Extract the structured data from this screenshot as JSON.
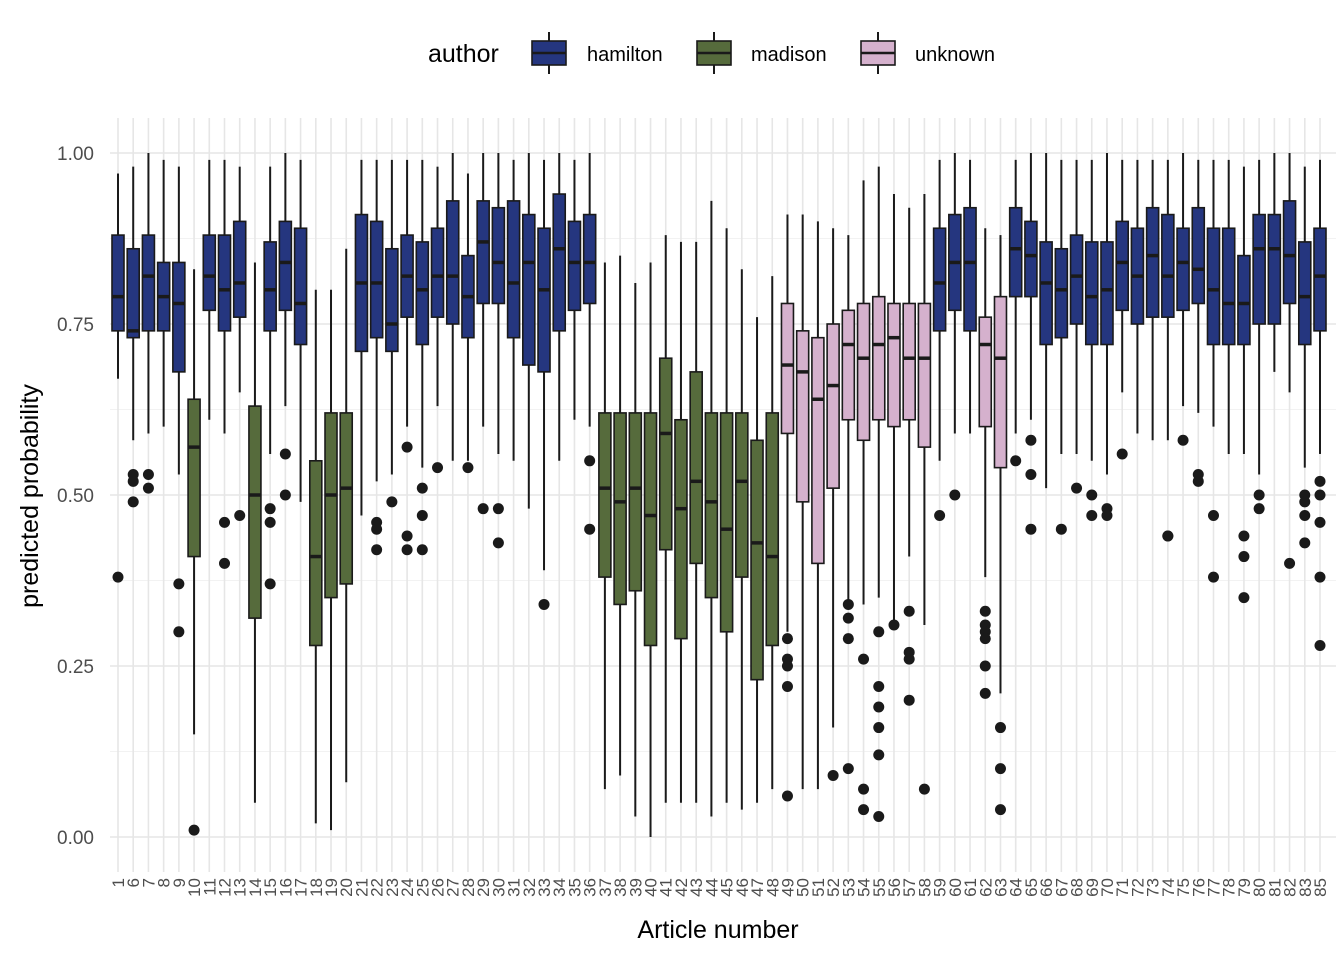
{
  "chart_data": {
    "type": "boxplot",
    "xlabel": "Article number",
    "ylabel": "predicted probability",
    "ylim": [
      -0.05,
      1.05
    ],
    "yticks": [
      "0.00",
      "0.25",
      "0.50",
      "0.75",
      "1.00"
    ],
    "grid": true,
    "legend": {
      "title": "author",
      "placement": "top",
      "entries": [
        {
          "name": "hamilton",
          "color": "#25367f"
        },
        {
          "name": "madison",
          "color": "#566b3c"
        },
        {
          "name": "unknown",
          "color": "#d5b1cd"
        }
      ]
    },
    "articles": [
      {
        "label": "1",
        "author": "hamilton",
        "stats": [
          0.67,
          0.74,
          0.79,
          0.88,
          0.97
        ],
        "outliers": [
          0.38
        ]
      },
      {
        "label": "6",
        "author": "hamilton",
        "stats": [
          0.58,
          0.73,
          0.74,
          0.86,
          0.98
        ],
        "outliers": [
          0.53,
          0.52,
          0.49
        ]
      },
      {
        "label": "7",
        "author": "hamilton",
        "stats": [
          0.59,
          0.74,
          0.82,
          0.88,
          1.0
        ],
        "outliers": [
          0.53,
          0.51
        ]
      },
      {
        "label": "8",
        "author": "hamilton",
        "stats": [
          0.6,
          0.74,
          0.79,
          0.84,
          0.99
        ],
        "outliers": []
      },
      {
        "label": "9",
        "author": "hamilton",
        "stats": [
          0.53,
          0.68,
          0.78,
          0.84,
          0.98
        ],
        "outliers": [
          0.37,
          0.3
        ]
      },
      {
        "label": "10",
        "author": "madison",
        "stats": [
          0.15,
          0.41,
          0.57,
          0.64,
          0.83
        ],
        "outliers": [
          0.01
        ]
      },
      {
        "label": "11",
        "author": "hamilton",
        "stats": [
          0.61,
          0.77,
          0.82,
          0.88,
          0.99
        ],
        "outliers": []
      },
      {
        "label": "12",
        "author": "hamilton",
        "stats": [
          0.59,
          0.74,
          0.8,
          0.88,
          0.99
        ],
        "outliers": [
          0.46,
          0.4
        ]
      },
      {
        "label": "13",
        "author": "hamilton",
        "stats": [
          0.65,
          0.76,
          0.81,
          0.9,
          0.98
        ],
        "outliers": [
          0.47
        ]
      },
      {
        "label": "14",
        "author": "madison",
        "stats": [
          0.05,
          0.32,
          0.5,
          0.63,
          0.84
        ],
        "outliers": []
      },
      {
        "label": "15",
        "author": "hamilton",
        "stats": [
          0.56,
          0.74,
          0.8,
          0.87,
          0.98
        ],
        "outliers": [
          0.48,
          0.46,
          0.37
        ]
      },
      {
        "label": "16",
        "author": "hamilton",
        "stats": [
          0.63,
          0.77,
          0.84,
          0.9,
          1.0
        ],
        "outliers": [
          0.56,
          0.5
        ]
      },
      {
        "label": "17",
        "author": "hamilton",
        "stats": [
          0.49,
          0.72,
          0.78,
          0.89,
          0.99
        ],
        "outliers": []
      },
      {
        "label": "18",
        "author": "madison",
        "stats": [
          0.02,
          0.28,
          0.41,
          0.55,
          0.8
        ],
        "outliers": []
      },
      {
        "label": "19",
        "author": "madison",
        "stats": [
          0.01,
          0.35,
          0.5,
          0.62,
          0.8
        ],
        "outliers": []
      },
      {
        "label": "20",
        "author": "madison",
        "stats": [
          0.08,
          0.37,
          0.51,
          0.62,
          0.86
        ],
        "outliers": []
      },
      {
        "label": "21",
        "author": "hamilton",
        "stats": [
          0.47,
          0.71,
          0.81,
          0.91,
          0.99
        ],
        "outliers": []
      },
      {
        "label": "22",
        "author": "hamilton",
        "stats": [
          0.52,
          0.73,
          0.81,
          0.9,
          0.99
        ],
        "outliers": [
          0.46,
          0.45,
          0.42
        ]
      },
      {
        "label": "23",
        "author": "hamilton",
        "stats": [
          0.53,
          0.71,
          0.75,
          0.86,
          0.99
        ],
        "outliers": [
          0.49
        ]
      },
      {
        "label": "24",
        "author": "hamilton",
        "stats": [
          0.6,
          0.76,
          0.82,
          0.88,
          0.99
        ],
        "outliers": [
          0.57,
          0.44,
          0.42
        ]
      },
      {
        "label": "25",
        "author": "hamilton",
        "stats": [
          0.54,
          0.72,
          0.8,
          0.87,
          0.99
        ],
        "outliers": [
          0.51,
          0.47,
          0.42
        ]
      },
      {
        "label": "26",
        "author": "hamilton",
        "stats": [
          0.63,
          0.76,
          0.82,
          0.89,
          0.98
        ],
        "outliers": [
          0.54
        ]
      },
      {
        "label": "27",
        "author": "hamilton",
        "stats": [
          0.55,
          0.75,
          0.82,
          0.93,
          1.0
        ],
        "outliers": []
      },
      {
        "label": "28",
        "author": "hamilton",
        "stats": [
          0.55,
          0.73,
          0.79,
          0.85,
          0.97
        ],
        "outliers": [
          0.54
        ]
      },
      {
        "label": "29",
        "author": "hamilton",
        "stats": [
          0.6,
          0.78,
          0.87,
          0.93,
          1.0
        ],
        "outliers": [
          0.48
        ]
      },
      {
        "label": "30",
        "author": "hamilton",
        "stats": [
          0.56,
          0.78,
          0.84,
          0.92,
          1.0
        ],
        "outliers": [
          0.48,
          0.43
        ]
      },
      {
        "label": "31",
        "author": "hamilton",
        "stats": [
          0.55,
          0.73,
          0.81,
          0.93,
          0.99
        ],
        "outliers": []
      },
      {
        "label": "32",
        "author": "hamilton",
        "stats": [
          0.48,
          0.69,
          0.84,
          0.91,
          1.0
        ],
        "outliers": []
      },
      {
        "label": "33",
        "author": "hamilton",
        "stats": [
          0.39,
          0.68,
          0.8,
          0.89,
          0.99
        ],
        "outliers": [
          0.34
        ]
      },
      {
        "label": "34",
        "author": "hamilton",
        "stats": [
          0.55,
          0.74,
          0.86,
          0.94,
          1.0
        ],
        "outliers": []
      },
      {
        "label": "35",
        "author": "hamilton",
        "stats": [
          0.61,
          0.77,
          0.84,
          0.9,
          0.99
        ],
        "outliers": []
      },
      {
        "label": "36",
        "author": "hamilton",
        "stats": [
          0.6,
          0.78,
          0.84,
          0.91,
          1.0
        ],
        "outliers": [
          0.55,
          0.45
        ]
      },
      {
        "label": "37",
        "author": "madison",
        "stats": [
          0.07,
          0.38,
          0.51,
          0.62,
          0.84
        ],
        "outliers": []
      },
      {
        "label": "38",
        "author": "madison",
        "stats": [
          0.09,
          0.34,
          0.49,
          0.62,
          0.85
        ],
        "outliers": []
      },
      {
        "label": "39",
        "author": "madison",
        "stats": [
          0.03,
          0.36,
          0.51,
          0.62,
          0.81
        ],
        "outliers": []
      },
      {
        "label": "40",
        "author": "madison",
        "stats": [
          0.0,
          0.28,
          0.47,
          0.62,
          0.84
        ],
        "outliers": []
      },
      {
        "label": "41",
        "author": "madison",
        "stats": [
          0.05,
          0.42,
          0.59,
          0.7,
          0.88
        ],
        "outliers": []
      },
      {
        "label": "42",
        "author": "madison",
        "stats": [
          0.05,
          0.29,
          0.48,
          0.61,
          0.87
        ],
        "outliers": []
      },
      {
        "label": "43",
        "author": "madison",
        "stats": [
          0.05,
          0.4,
          0.52,
          0.68,
          0.87
        ],
        "outliers": []
      },
      {
        "label": "44",
        "author": "madison",
        "stats": [
          0.03,
          0.35,
          0.49,
          0.62,
          0.93
        ],
        "outliers": []
      },
      {
        "label": "45",
        "author": "madison",
        "stats": [
          0.05,
          0.3,
          0.45,
          0.62,
          0.89
        ],
        "outliers": []
      },
      {
        "label": "46",
        "author": "madison",
        "stats": [
          0.04,
          0.38,
          0.52,
          0.62,
          0.83
        ],
        "outliers": []
      },
      {
        "label": "47",
        "author": "madison",
        "stats": [
          0.05,
          0.23,
          0.43,
          0.58,
          0.76
        ],
        "outliers": []
      },
      {
        "label": "48",
        "author": "madison",
        "stats": [
          0.07,
          0.28,
          0.41,
          0.62,
          0.82
        ],
        "outliers": []
      },
      {
        "label": "49",
        "author": "unknown",
        "stats": [
          0.3,
          0.59,
          0.69,
          0.78,
          0.91
        ],
        "outliers": [
          0.29,
          0.26,
          0.25,
          0.22,
          0.06
        ]
      },
      {
        "label": "50",
        "author": "unknown",
        "stats": [
          0.07,
          0.49,
          0.68,
          0.74,
          0.91
        ],
        "outliers": []
      },
      {
        "label": "51",
        "author": "unknown",
        "stats": [
          0.07,
          0.4,
          0.64,
          0.73,
          0.9
        ],
        "outliers": []
      },
      {
        "label": "52",
        "author": "unknown",
        "stats": [
          0.16,
          0.51,
          0.66,
          0.75,
          0.89
        ],
        "outliers": [
          0.09
        ]
      },
      {
        "label": "53",
        "author": "unknown",
        "stats": [
          0.34,
          0.61,
          0.72,
          0.77,
          0.88
        ],
        "outliers": [
          0.34,
          0.32,
          0.29,
          0.1
        ]
      },
      {
        "label": "54",
        "author": "unknown",
        "stats": [
          0.34,
          0.58,
          0.7,
          0.78,
          0.96
        ],
        "outliers": [
          0.26,
          0.07,
          0.04
        ]
      },
      {
        "label": "55",
        "author": "unknown",
        "stats": [
          0.35,
          0.61,
          0.72,
          0.79,
          0.98
        ],
        "outliers": [
          0.3,
          0.22,
          0.19,
          0.16,
          0.12,
          0.03
        ]
      },
      {
        "label": "56",
        "author": "unknown",
        "stats": [
          0.31,
          0.6,
          0.73,
          0.78,
          0.94
        ],
        "outliers": [
          0.31
        ]
      },
      {
        "label": "57",
        "author": "unknown",
        "stats": [
          0.41,
          0.61,
          0.7,
          0.78,
          0.92
        ],
        "outliers": [
          0.33,
          0.27,
          0.26,
          0.2
        ]
      },
      {
        "label": "58",
        "author": "unknown",
        "stats": [
          0.31,
          0.57,
          0.7,
          0.78,
          0.94
        ],
        "outliers": [
          0.07
        ]
      },
      {
        "label": "59",
        "author": "hamilton",
        "stats": [
          0.55,
          0.74,
          0.81,
          0.89,
          0.99
        ],
        "outliers": [
          0.47
        ]
      },
      {
        "label": "60",
        "author": "hamilton",
        "stats": [
          0.59,
          0.77,
          0.84,
          0.91,
          1.0
        ],
        "outliers": [
          0.5
        ]
      },
      {
        "label": "61",
        "author": "hamilton",
        "stats": [
          0.59,
          0.74,
          0.84,
          0.92,
          0.99
        ],
        "outliers": []
      },
      {
        "label": "62",
        "author": "unknown",
        "stats": [
          0.38,
          0.6,
          0.72,
          0.76,
          0.89
        ],
        "outliers": [
          0.33,
          0.31,
          0.3,
          0.29,
          0.25,
          0.21
        ]
      },
      {
        "label": "63",
        "author": "unknown",
        "stats": [
          0.21,
          0.54,
          0.7,
          0.79,
          0.88
        ],
        "outliers": [
          0.16,
          0.1,
          0.04
        ]
      },
      {
        "label": "64",
        "author": "hamilton",
        "stats": [
          0.59,
          0.79,
          0.86,
          0.92,
          0.99
        ],
        "outliers": [
          0.55
        ]
      },
      {
        "label": "65",
        "author": "hamilton",
        "stats": [
          0.61,
          0.79,
          0.85,
          0.9,
          1.0
        ],
        "outliers": [
          0.58,
          0.53,
          0.45
        ]
      },
      {
        "label": "66",
        "author": "hamilton",
        "stats": [
          0.51,
          0.72,
          0.81,
          0.87,
          1.0
        ],
        "outliers": []
      },
      {
        "label": "67",
        "author": "hamilton",
        "stats": [
          0.56,
          0.73,
          0.8,
          0.86,
          0.99
        ],
        "outliers": [
          0.45
        ]
      },
      {
        "label": "68",
        "author": "hamilton",
        "stats": [
          0.56,
          0.75,
          0.82,
          0.88,
          0.99
        ],
        "outliers": [
          0.51
        ]
      },
      {
        "label": "69",
        "author": "hamilton",
        "stats": [
          0.55,
          0.72,
          0.79,
          0.87,
          0.99
        ],
        "outliers": [
          0.5,
          0.47
        ]
      },
      {
        "label": "70",
        "author": "hamilton",
        "stats": [
          0.53,
          0.72,
          0.8,
          0.87,
          1.0
        ],
        "outliers": [
          0.48,
          0.47
        ]
      },
      {
        "label": "71",
        "author": "hamilton",
        "stats": [
          0.65,
          0.77,
          0.84,
          0.9,
          0.99
        ],
        "outliers": [
          0.56
        ]
      },
      {
        "label": "72",
        "author": "hamilton",
        "stats": [
          0.59,
          0.75,
          0.82,
          0.89,
          0.99
        ],
        "outliers": []
      },
      {
        "label": "73",
        "author": "hamilton",
        "stats": [
          0.58,
          0.76,
          0.85,
          0.92,
          0.99
        ],
        "outliers": []
      },
      {
        "label": "74",
        "author": "hamilton",
        "stats": [
          0.58,
          0.76,
          0.82,
          0.91,
          0.99
        ],
        "outliers": [
          0.44,
          0.44
        ]
      },
      {
        "label": "75",
        "author": "hamilton",
        "stats": [
          0.63,
          0.77,
          0.84,
          0.89,
          1.0
        ],
        "outliers": [
          0.58
        ]
      },
      {
        "label": "76",
        "author": "hamilton",
        "stats": [
          0.62,
          0.78,
          0.83,
          0.92,
          0.99
        ],
        "outliers": [
          0.53,
          0.52
        ]
      },
      {
        "label": "77",
        "author": "hamilton",
        "stats": [
          0.6,
          0.72,
          0.8,
          0.89,
          0.99
        ],
        "outliers": [
          0.47,
          0.38
        ]
      },
      {
        "label": "78",
        "author": "hamilton",
        "stats": [
          0.56,
          0.72,
          0.78,
          0.89,
          0.99
        ],
        "outliers": []
      },
      {
        "label": "79",
        "author": "hamilton",
        "stats": [
          0.56,
          0.72,
          0.78,
          0.85,
          0.98
        ],
        "outliers": [
          0.44,
          0.41,
          0.35
        ]
      },
      {
        "label": "80",
        "author": "hamilton",
        "stats": [
          0.53,
          0.75,
          0.86,
          0.91,
          0.99
        ],
        "outliers": [
          0.5,
          0.48
        ]
      },
      {
        "label": "81",
        "author": "hamilton",
        "stats": [
          0.68,
          0.75,
          0.86,
          0.91,
          1.0
        ],
        "outliers": []
      },
      {
        "label": "82",
        "author": "hamilton",
        "stats": [
          0.65,
          0.78,
          0.85,
          0.93,
          1.0
        ],
        "outliers": [
          0.4
        ]
      },
      {
        "label": "83",
        "author": "hamilton",
        "stats": [
          0.54,
          0.72,
          0.79,
          0.87,
          0.98
        ],
        "outliers": [
          0.5,
          0.49,
          0.47,
          0.43
        ]
      },
      {
        "label": "85",
        "author": "hamilton",
        "stats": [
          0.56,
          0.74,
          0.82,
          0.89,
          0.99
        ],
        "outliers": [
          0.52,
          0.5,
          0.46,
          0.38,
          0.28
        ]
      }
    ]
  }
}
